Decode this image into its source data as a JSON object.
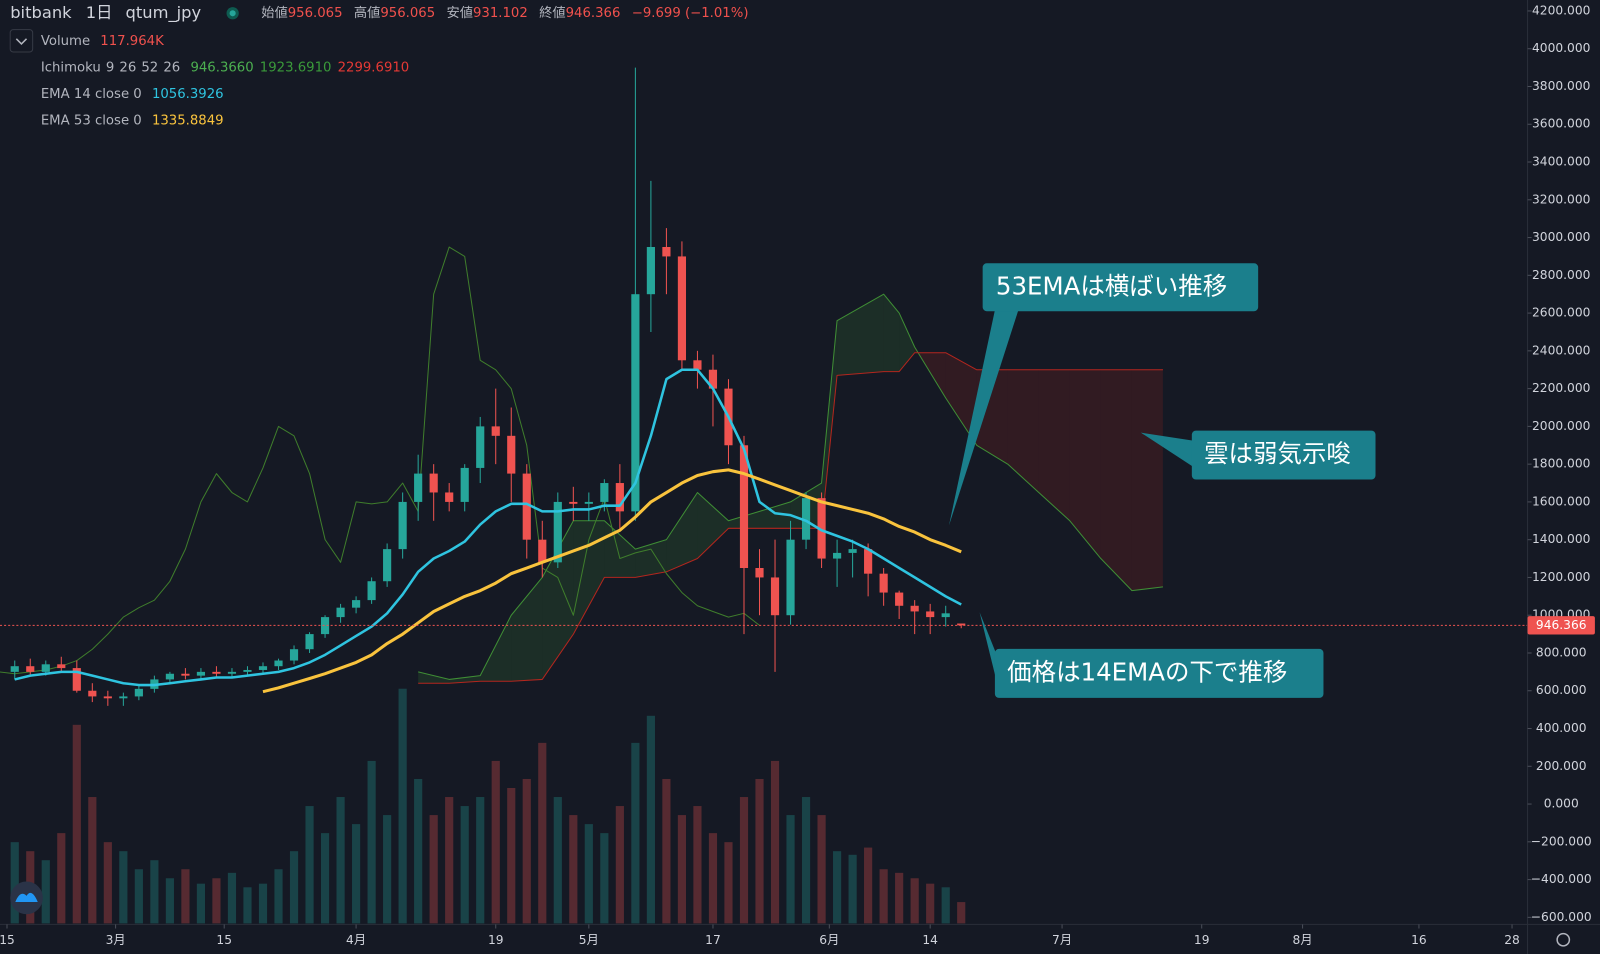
{
  "header": {
    "exchange": "bitbank",
    "interval": "1日",
    "symbol": "qtum_jpy",
    "open_label": "始値",
    "high_label": "高値",
    "low_label": "安値",
    "close_label": "終値",
    "change": "−9.699 (−1.01%)"
  },
  "chart_data": {
    "type": "candlestick",
    "x": [
      1,
      3,
      5,
      7,
      9,
      11,
      13,
      15,
      17,
      19,
      21,
      23,
      25,
      27,
      29,
      31,
      33,
      35,
      37,
      39,
      41,
      43,
      45,
      47,
      49,
      51,
      53,
      55,
      57,
      59,
      61,
      63,
      65,
      67,
      69,
      71,
      73,
      75,
      77,
      79,
      81,
      83,
      85,
      87,
      89,
      91,
      93,
      95,
      97,
      99,
      101,
      103,
      105,
      107,
      109,
      111,
      113,
      115,
      117,
      119,
      121,
      123
    ],
    "open": [
      700,
      730,
      700,
      740,
      720,
      600,
      570,
      560,
      570,
      610,
      660,
      690,
      680,
      700,
      690,
      700,
      710,
      730,
      760,
      820,
      900,
      990,
      1040,
      1080,
      1180,
      1350,
      1600,
      1750,
      1650,
      1600,
      1780,
      2000,
      1950,
      1750,
      1400,
      1280,
      1600,
      1590,
      1600,
      1700,
      1550,
      2700,
      2950,
      2900,
      2350,
      2300,
      2200,
      1900,
      1250,
      1200,
      1000,
      1400,
      1620,
      1300,
      1330,
      1350,
      1220,
      1120,
      1050,
      1020,
      990,
      956.065
    ],
    "high": [
      760,
      770,
      760,
      780,
      760,
      640,
      600,
      590,
      630,
      680,
      700,
      720,
      720,
      730,
      720,
      730,
      750,
      770,
      840,
      910,
      1000,
      1060,
      1100,
      1200,
      1380,
      1650,
      1850,
      1800,
      1700,
      1800,
      2050,
      2200,
      2100,
      1800,
      1500,
      1650,
      1680,
      1650,
      1720,
      1800,
      3900,
      3300,
      3050,
      2980,
      2400,
      2380,
      2250,
      1950,
      1350,
      1400,
      1500,
      1650,
      1650,
      1400,
      1400,
      1380,
      1250,
      1130,
      1080,
      1060,
      1050,
      956.065
    ],
    "low": [
      660,
      680,
      680,
      700,
      590,
      540,
      520,
      520,
      550,
      590,
      640,
      660,
      660,
      670,
      670,
      680,
      690,
      710,
      740,
      800,
      880,
      960,
      1010,
      1060,
      1150,
      1300,
      1500,
      1500,
      1550,
      1550,
      1700,
      1800,
      1600,
      1300,
      1200,
      1250,
      1500,
      1500,
      1550,
      1450,
      1500,
      2500,
      2700,
      2300,
      2200,
      2000,
      1800,
      900,
      1000,
      700,
      950,
      1350,
      1250,
      1150,
      1200,
      1100,
      1050,
      980,
      900,
      900,
      940,
      931.102
    ],
    "close": [
      730,
      700,
      740,
      720,
      600,
      570,
      560,
      570,
      610,
      660,
      690,
      680,
      700,
      690,
      700,
      710,
      730,
      760,
      820,
      900,
      990,
      1040,
      1080,
      1180,
      1350,
      1600,
      1750,
      1650,
      1600,
      1780,
      2000,
      1950,
      1750,
      1400,
      1280,
      1600,
      1590,
      1600,
      1700,
      1550,
      2700,
      2950,
      2900,
      2350,
      2300,
      2200,
      1900,
      1250,
      1200,
      1000,
      1400,
      1620,
      1300,
      1330,
      1350,
      1220,
      1120,
      1050,
      1020,
      990,
      1010,
      946.366
    ],
    "up_color": "#26a69a",
    "down_color": "#ef5350",
    "volume": {
      "name": "Volume",
      "readout": "117.964K",
      "values": [
        450,
        400,
        350,
        500,
        1100,
        700,
        450,
        400,
        300,
        350,
        250,
        300,
        220,
        250,
        280,
        200,
        220,
        300,
        400,
        650,
        500,
        700,
        550,
        900,
        600,
        1300,
        800,
        600,
        700,
        650,
        700,
        900,
        750,
        800,
        1000,
        700,
        600,
        550,
        500,
        650,
        1000,
        1150,
        800,
        600,
        650,
        500,
        450,
        700,
        800,
        900,
        600,
        700,
        600,
        400,
        380,
        420,
        300,
        280,
        250,
        220,
        200,
        117.964
      ]
    },
    "ema": [
      {
        "name": "EMA 14 close 0",
        "color": "#2fc4e0",
        "values": [
          660,
          680,
          690,
          700,
          700,
          680,
          660,
          640,
          630,
          630,
          640,
          650,
          660,
          670,
          670,
          680,
          690,
          700,
          720,
          750,
          790,
          840,
          890,
          940,
          1010,
          1110,
          1230,
          1300,
          1340,
          1390,
          1480,
          1550,
          1590,
          1590,
          1550,
          1550,
          1560,
          1560,
          1580,
          1580,
          1700,
          1950,
          2250,
          2300,
          2300,
          2200,
          2050,
          1880,
          1600,
          1540,
          1530,
          1500,
          1450,
          1420,
          1390,
          1350,
          1300,
          1250,
          1200,
          1150,
          1100,
          1056.3926
        ]
      },
      {
        "name": "EMA 53 close 0",
        "color": "#f9c33d",
        "values": [
          null,
          null,
          null,
          null,
          null,
          null,
          null,
          null,
          null,
          null,
          null,
          null,
          null,
          null,
          null,
          null,
          595,
          615,
          640,
          665,
          690,
          720,
          750,
          790,
          850,
          900,
          960,
          1020,
          1060,
          1100,
          1130,
          1170,
          1220,
          1250,
          1280,
          1310,
          1340,
          1370,
          1410,
          1450,
          1520,
          1600,
          1650,
          1700,
          1740,
          1760,
          1770,
          1750,
          1720,
          1690,
          1660,
          1630,
          1600,
          1580,
          1560,
          1540,
          1510,
          1470,
          1440,
          1400,
          1370,
          1335.8849
        ]
      }
    ],
    "ichimoku": {
      "name": "Ichimoku",
      "params": [
        9,
        26,
        52,
        26
      ],
      "readout": [
        "946.3660",
        "1923.6910",
        "2299.6910"
      ],
      "lagging_color": "#3f7d2c",
      "span_a_color": "#3f8e35",
      "span_b_color": "#b3261e",
      "span_x": [
        53,
        57,
        61,
        65,
        69,
        73,
        77,
        81,
        85,
        89,
        93,
        97,
        101,
        105,
        107,
        113,
        115,
        117,
        121,
        125,
        129,
        133,
        137,
        141,
        145,
        149
      ],
      "span_a": [
        700,
        660,
        680,
        1000,
        1200,
        1500,
        1500,
        1350,
        1400,
        1650,
        1500,
        1550,
        1600,
        1700,
        2560,
        2700,
        2600,
        2420,
        2150,
        1900,
        1800,
        1650,
        1500,
        1300,
        1130,
        1150
      ],
      "span_b": [
        640,
        640,
        650,
        650,
        660,
        900,
        1200,
        1200,
        1230,
        1300,
        1460,
        1460,
        1460,
        1460,
        2270,
        2290,
        2290,
        2390,
        2390,
        2300,
        2300,
        2300,
        2300,
        2300,
        2300,
        2300
      ]
    },
    "xlim": [
      -0.9,
      196
    ],
    "xticks": [
      {
        "value": 0,
        "label": "15"
      },
      {
        "value": 14,
        "label": "3月"
      },
      {
        "value": 28,
        "label": "15"
      },
      {
        "value": 45,
        "label": "4月"
      },
      {
        "value": 63,
        "label": "19"
      },
      {
        "value": 75,
        "label": "5月"
      },
      {
        "value": 91,
        "label": "17"
      },
      {
        "value": 106,
        "label": "6月"
      },
      {
        "value": 119,
        "label": "14"
      },
      {
        "value": 136,
        "label": "7月"
      },
      {
        "value": 154,
        "label": "19"
      },
      {
        "value": 167,
        "label": "8月"
      },
      {
        "value": 182,
        "label": "16"
      },
      {
        "value": 194,
        "label": "28"
      }
    ],
    "ylim": [
      -632,
      4258
    ],
    "yticks": [
      {
        "value": 4200,
        "label": "4200.000"
      },
      {
        "value": 4000,
        "label": "4000.000"
      },
      {
        "value": 3800,
        "label": "3800.000"
      },
      {
        "value": 3600,
        "label": "3600.000"
      },
      {
        "value": 3400,
        "label": "3400.000"
      },
      {
        "value": 3200,
        "label": "3200.000"
      },
      {
        "value": 3000,
        "label": "3000.000"
      },
      {
        "value": 2800,
        "label": "2800.000"
      },
      {
        "value": 2600,
        "label": "2600.000"
      },
      {
        "value": 2400,
        "label": "2400.000"
      },
      {
        "value": 2200,
        "label": "2200.000"
      },
      {
        "value": 2000,
        "label": "2000.000"
      },
      {
        "value": 1800,
        "label": "1800.000"
      },
      {
        "value": 1600,
        "label": "1600.000"
      },
      {
        "value": 1400,
        "label": "1400.000"
      },
      {
        "value": 1200,
        "label": "1200.000"
      },
      {
        "value": 1000,
        "label": "1000.000"
      },
      {
        "value": 800,
        "label": "800.000"
      },
      {
        "value": 600,
        "label": "600.000"
      },
      {
        "value": 400,
        "label": "400.000"
      },
      {
        "value": 200,
        "label": "200.000"
      },
      {
        "value": 0,
        "label": "0.000"
      },
      {
        "value": -200,
        "label": "−200.000"
      },
      {
        "value": -400,
        "label": "−400.000"
      },
      {
        "value": -600,
        "label": "−600.000"
      }
    ],
    "annotations": [
      "53EMAは横ばい推移",
      "雲は弱気示唆",
      "価格は14EMAの下で推移"
    ]
  }
}
